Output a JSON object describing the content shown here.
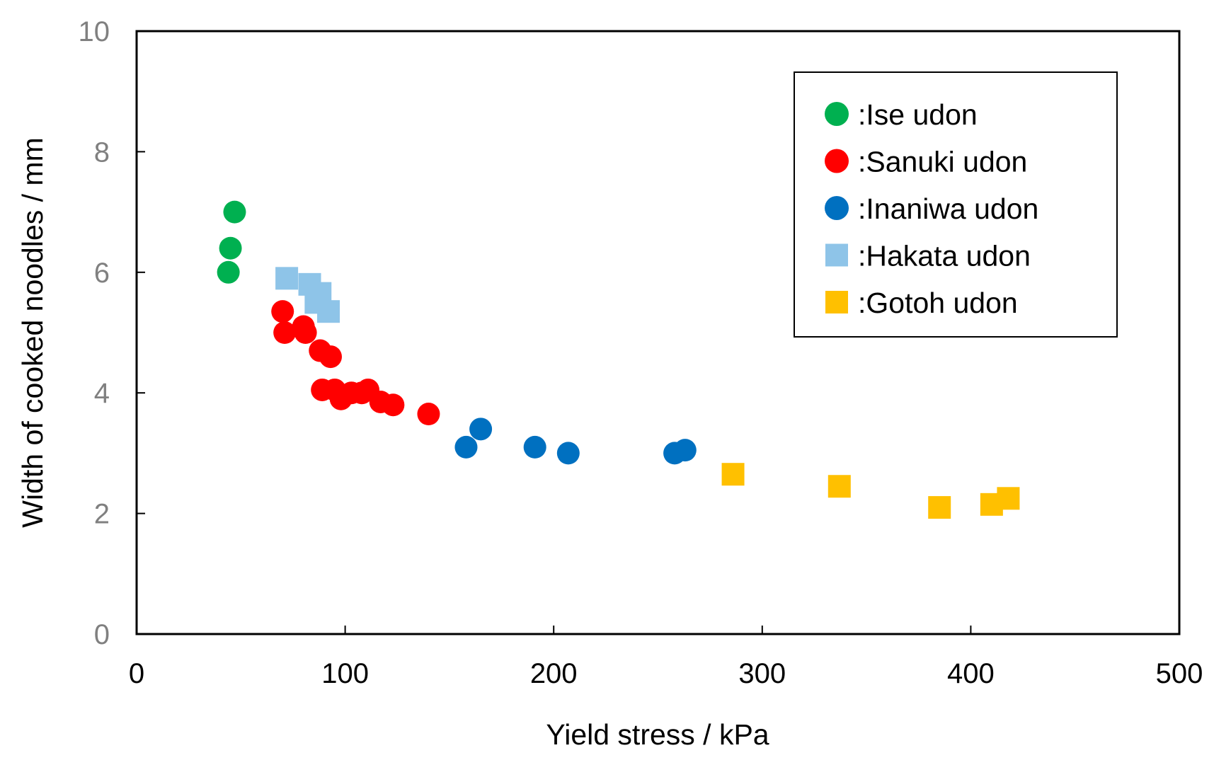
{
  "chart_data": {
    "type": "scatter",
    "title": "",
    "xlabel": "Yield stress / kPa",
    "ylabel": "Width of cooked noodles / mm",
    "xlim": [
      0,
      500
    ],
    "ylim": [
      0,
      10
    ],
    "xticks": [
      "0",
      "100",
      "200",
      "300",
      "400",
      "500"
    ],
    "yticks": [
      "0",
      "2",
      "4",
      "6",
      "8",
      "10"
    ],
    "grid": false,
    "legend_position": "top-right",
    "series": [
      {
        "name": ":Ise udon",
        "marker": "circle",
        "color": "#00b050",
        "points": [
          [
            44,
            6.0
          ],
          [
            45,
            6.4
          ],
          [
            47,
            7.0
          ]
        ]
      },
      {
        "name": ":Sanuki udon",
        "marker": "circle",
        "color": "#ff0000",
        "points": [
          [
            70,
            5.35
          ],
          [
            71,
            5.0
          ],
          [
            80,
            5.1
          ],
          [
            81,
            5.0
          ],
          [
            88,
            4.7
          ],
          [
            89,
            4.05
          ],
          [
            93,
            4.6
          ],
          [
            95,
            4.05
          ],
          [
            98,
            3.9
          ],
          [
            103,
            4.0
          ],
          [
            108,
            4.0
          ],
          [
            111,
            4.05
          ],
          [
            117,
            3.85
          ],
          [
            123,
            3.8
          ],
          [
            140,
            3.65
          ]
        ]
      },
      {
        "name": ":Inaniwa udon",
        "marker": "circle",
        "color": "#0070c0",
        "points": [
          [
            158,
            3.1
          ],
          [
            165,
            3.4
          ],
          [
            191,
            3.1
          ],
          [
            207,
            3.0
          ],
          [
            258,
            3.0
          ],
          [
            263,
            3.05
          ]
        ]
      },
      {
        "name": ":Hakata udon",
        "marker": "square",
        "color": "#8ec4e8",
        "points": [
          [
            72,
            5.9
          ],
          [
            83,
            5.8
          ],
          [
            86,
            5.5
          ],
          [
            88,
            5.65
          ],
          [
            92,
            5.35
          ]
        ]
      },
      {
        "name": ":Gotoh udon",
        "marker": "square",
        "color": "#ffc000",
        "points": [
          [
            286,
            2.65
          ],
          [
            337,
            2.45
          ],
          [
            385,
            2.1
          ],
          [
            410,
            2.15
          ],
          [
            418,
            2.25
          ]
        ]
      }
    ]
  }
}
